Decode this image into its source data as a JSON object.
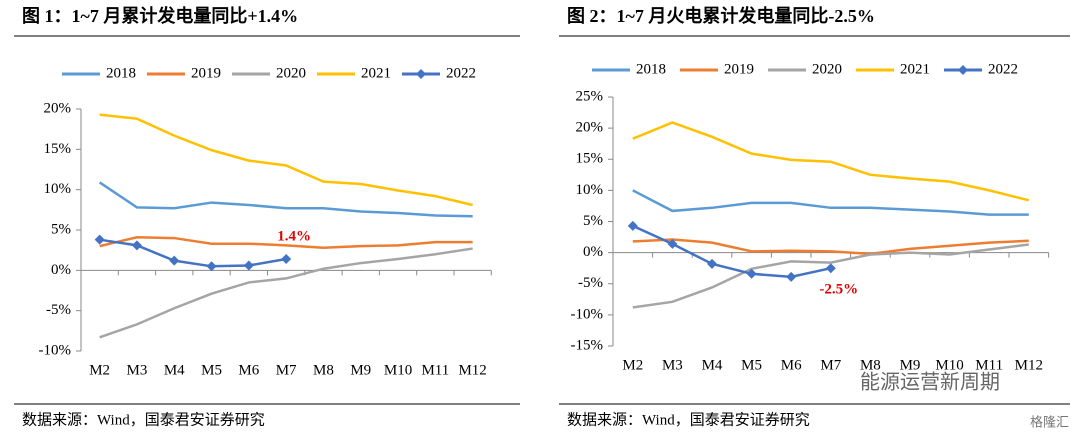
{
  "chart_data": [
    {
      "type": "line",
      "title": "图 1：1~7 月累计发电量同比+1.4%",
      "source": "数据来源：Wind，国泰君安证券研究",
      "categories": [
        "M2",
        "M3",
        "M4",
        "M5",
        "M6",
        "M7",
        "M8",
        "M9",
        "M10",
        "M11",
        "M12"
      ],
      "ylim": [
        -10,
        20
      ],
      "yticks": [
        {
          "value": -10,
          "label": "-10%"
        },
        {
          "value": -5,
          "label": "-5%"
        },
        {
          "value": 0,
          "label": "0%"
        },
        {
          "value": 5,
          "label": "5%"
        },
        {
          "value": 10,
          "label": "10%"
        },
        {
          "value": 15,
          "label": "15%"
        },
        {
          "value": 20,
          "label": "20%"
        }
      ],
      "series": [
        {
          "name": "2018",
          "color": "#5b9bd5",
          "values": [
            10.9,
            7.8,
            7.7,
            8.4,
            8.1,
            7.7,
            7.7,
            7.3,
            7.1,
            6.8,
            6.7
          ]
        },
        {
          "name": "2019",
          "color": "#ed7d31",
          "values": [
            3.0,
            4.1,
            4.0,
            3.3,
            3.3,
            3.1,
            2.8,
            3.0,
            3.1,
            3.5,
            3.5
          ]
        },
        {
          "name": "2020",
          "color": "#a5a5a5",
          "values": [
            -8.3,
            -6.7,
            -4.7,
            -2.9,
            -1.5,
            -1.0,
            0.2,
            0.9,
            1.4,
            2.0,
            2.7
          ]
        },
        {
          "name": "2021",
          "color": "#ffc000",
          "values": [
            19.3,
            18.8,
            16.7,
            14.9,
            13.6,
            13.0,
            11.0,
            10.7,
            9.9,
            9.2,
            8.1
          ]
        },
        {
          "name": "2022",
          "color": "#4472c4",
          "marker": "diamond",
          "values": [
            3.8,
            3.1,
            1.2,
            0.5,
            0.6,
            1.4,
            null,
            null,
            null,
            null,
            null
          ]
        }
      ],
      "annotations": [
        {
          "text": "1.4%",
          "series": 4,
          "index": 5
        }
      ]
    },
    {
      "type": "line",
      "title": "图 2：1~7 月火电累计发电量同比-2.5%",
      "source": "数据来源：Wind，国泰君安证券研究",
      "categories": [
        "M2",
        "M3",
        "M4",
        "M5",
        "M6",
        "M7",
        "M8",
        "M9",
        "M10",
        "M11",
        "M12"
      ],
      "ylim": [
        -15,
        25
      ],
      "yticks": [
        {
          "value": -15,
          "label": "-15%"
        },
        {
          "value": -10,
          "label": "-10%"
        },
        {
          "value": -5,
          "label": "-5%"
        },
        {
          "value": 0,
          "label": "0%"
        },
        {
          "value": 5,
          "label": "5%"
        },
        {
          "value": 10,
          "label": "10%"
        },
        {
          "value": 15,
          "label": "15%"
        },
        {
          "value": 20,
          "label": "20%"
        },
        {
          "value": 25,
          "label": "25%"
        }
      ],
      "series": [
        {
          "name": "2018",
          "color": "#5b9bd5",
          "values": [
            10.0,
            6.7,
            7.2,
            8.0,
            8.0,
            7.2,
            7.2,
            6.9,
            6.6,
            6.1,
            6.1
          ]
        },
        {
          "name": "2019",
          "color": "#ed7d31",
          "values": [
            1.8,
            2.1,
            1.6,
            0.2,
            0.3,
            0.2,
            -0.2,
            0.6,
            1.1,
            1.6,
            1.9
          ]
        },
        {
          "name": "2020",
          "color": "#a5a5a5",
          "values": [
            -8.8,
            -7.9,
            -5.6,
            -2.6,
            -1.4,
            -1.6,
            -0.3,
            0,
            -0.3,
            0.5,
            1.3
          ]
        },
        {
          "name": "2021",
          "color": "#ffc000",
          "values": [
            18.3,
            20.9,
            18.6,
            15.9,
            14.9,
            14.6,
            12.5,
            11.9,
            11.4,
            10.0,
            8.4
          ]
        },
        {
          "name": "2022",
          "color": "#4472c4",
          "marker": "diamond",
          "values": [
            4.3,
            1.4,
            -1.8,
            -3.4,
            -3.9,
            -2.5,
            null,
            null,
            null,
            null,
            null
          ]
        }
      ],
      "annotations": [
        {
          "text": "-2.5%",
          "series": 4,
          "index": 5
        }
      ]
    }
  ],
  "watermark": "能源运营新周期",
  "logo": "格隆汇"
}
